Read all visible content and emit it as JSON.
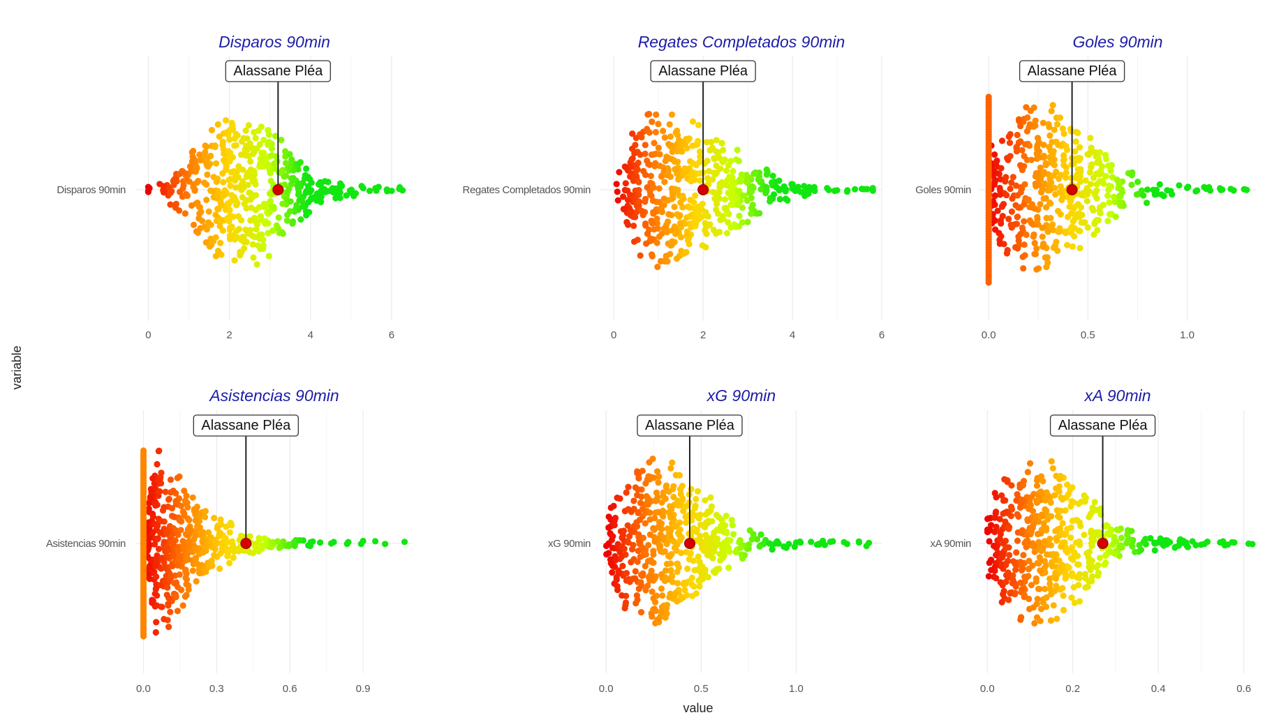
{
  "chart_data": {
    "type": "scatter",
    "xlabel": "value",
    "ylabel": "variable",
    "highlight_label": "Alassane Pléa",
    "highlight_color": "#d40000",
    "color_scale": [
      "#ee0000",
      "#ff7a00",
      "#ffd400",
      "#c8ff00",
      "#11e611"
    ],
    "grid": true,
    "panels": [
      {
        "title": "Disparos 90min",
        "category": "Disparos 90min",
        "xlim": [
          -0.3,
          6.5
        ],
        "ticks": [
          0,
          2,
          4,
          6
        ],
        "tick_labels": [
          "0",
          "2",
          "4",
          "6"
        ],
        "highlight_value": 3.2,
        "distribution": [
          [
            0,
            0.02
          ],
          [
            0.4,
            0.05
          ],
          [
            1.0,
            0.25
          ],
          [
            1.8,
            0.5
          ],
          [
            2.7,
            0.5
          ],
          [
            3.4,
            0.3
          ],
          [
            4.3,
            0.09
          ],
          [
            5.3,
            0.03
          ],
          [
            6.2,
            0.01
          ]
        ],
        "outliers": [
          0,
          0,
          0,
          5.3,
          5.6,
          6.0,
          6.2
        ],
        "zero_stack": false
      },
      {
        "title": "Regates Completados 90min",
        "category": "Regates Completados 90min",
        "xlim": [
          -0.3,
          6.0
        ],
        "ticks": [
          0,
          2,
          4,
          6
        ],
        "tick_labels": [
          "0",
          "2",
          "4",
          "6"
        ],
        "highlight_value": 2.0,
        "distribution": [
          [
            0,
            0.05
          ],
          [
            0.5,
            0.45
          ],
          [
            1.0,
            0.55
          ],
          [
            1.6,
            0.45
          ],
          [
            2.3,
            0.35
          ],
          [
            3.0,
            0.2
          ],
          [
            3.7,
            0.08
          ],
          [
            4.8,
            0.02
          ],
          [
            5.8,
            0.01
          ]
        ],
        "outliers": [
          4.5,
          5.0,
          5.4,
          5.6,
          5.8
        ],
        "zero_stack": false
      },
      {
        "title": "Goles 90min",
        "category": "Goles 90min",
        "xlim": [
          -0.05,
          1.35
        ],
        "ticks": [
          0,
          0.5,
          1.0
        ],
        "tick_labels": [
          "0.0",
          "0.5",
          "1.0"
        ],
        "highlight_value": 0.42,
        "distribution": [
          [
            0,
            0.3
          ],
          [
            0.1,
            0.45
          ],
          [
            0.25,
            0.6
          ],
          [
            0.4,
            0.45
          ],
          [
            0.55,
            0.3
          ],
          [
            0.7,
            0.12
          ],
          [
            0.9,
            0.05
          ],
          [
            1.1,
            0.02
          ],
          [
            1.3,
            0.01
          ]
        ],
        "outliers": [
          1.0,
          1.05,
          1.1,
          1.17,
          1.22,
          1.3
        ],
        "zero_stack": true
      },
      {
        "title": "Asistencias 90min",
        "category": "Asistencias 90min",
        "xlim": [
          -0.03,
          1.1
        ],
        "ticks": [
          0,
          0.3,
          0.6,
          0.9
        ],
        "tick_labels": [
          "0.0",
          "0.3",
          "0.6",
          "0.9"
        ],
        "highlight_value": 0.42,
        "distribution": [
          [
            0,
            0.05
          ],
          [
            0.05,
            0.6
          ],
          [
            0.12,
            0.5
          ],
          [
            0.2,
            0.35
          ],
          [
            0.3,
            0.2
          ],
          [
            0.4,
            0.08
          ],
          [
            0.55,
            0.03
          ],
          [
            0.8,
            0.01
          ],
          [
            1.07,
            0.01
          ]
        ],
        "outliers": [
          0.5,
          0.55,
          0.6,
          0.62,
          0.78,
          0.9,
          0.95,
          1.07
        ],
        "zero_stack": true
      },
      {
        "title": "xG 90min",
        "category": "xG 90min",
        "xlim": [
          -0.03,
          1.45
        ],
        "ticks": [
          0,
          0.5,
          1.0
        ],
        "tick_labels": [
          "0.0",
          "0.5",
          "1.0"
        ],
        "highlight_value": 0.44,
        "distribution": [
          [
            0,
            0.15
          ],
          [
            0.1,
            0.45
          ],
          [
            0.25,
            0.6
          ],
          [
            0.4,
            0.45
          ],
          [
            0.55,
            0.3
          ],
          [
            0.7,
            0.12
          ],
          [
            0.85,
            0.05
          ],
          [
            1.1,
            0.02
          ],
          [
            1.4,
            0.01
          ]
        ],
        "outliers": [
          0.9,
          1.0,
          1.02,
          1.12,
          1.14,
          1.33,
          1.37
        ],
        "zero_stack": false
      },
      {
        "title": "xA 90min",
        "category": "xA 90min",
        "xlim": [
          -0.02,
          0.63
        ],
        "ticks": [
          0,
          0.2,
          0.4,
          0.6
        ],
        "tick_labels": [
          "0.0",
          "0.2",
          "0.4",
          "0.6"
        ],
        "highlight_value": 0.27,
        "distribution": [
          [
            0,
            0.25
          ],
          [
            0.03,
            0.4
          ],
          [
            0.1,
            0.6
          ],
          [
            0.17,
            0.5
          ],
          [
            0.24,
            0.3
          ],
          [
            0.3,
            0.12
          ],
          [
            0.4,
            0.04
          ],
          [
            0.5,
            0.02
          ],
          [
            0.62,
            0.01
          ]
        ],
        "outliers": [
          0.4,
          0.42,
          0.45,
          0.48,
          0.5,
          0.62
        ],
        "zero_stack": false
      }
    ]
  }
}
